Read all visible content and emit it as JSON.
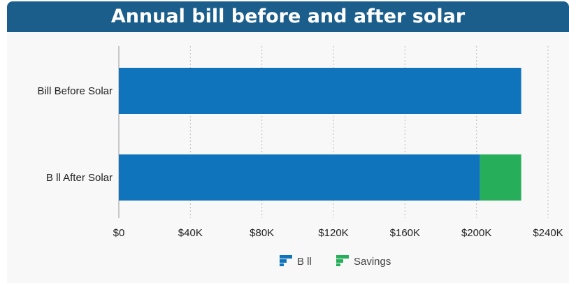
{
  "chart_data": {
    "type": "bar",
    "orientation": "horizontal",
    "stacked": true,
    "title": "Annual bill before and after solar",
    "categories": [
      "Bill Before Solar",
      "B ll After Solar"
    ],
    "series": [
      {
        "name": "B ll",
        "color": "#1074bc",
        "values": [
          225000,
          202000
        ]
      },
      {
        "name": "Savings",
        "color": "#27ae5a",
        "values": [
          0,
          23000
        ]
      }
    ],
    "xlim": [
      0,
      240000
    ],
    "x_ticks": [
      0,
      40000,
      80000,
      120000,
      160000,
      200000,
      240000
    ],
    "x_tick_labels": [
      "$0",
      "$40K",
      "$80K",
      "$120K",
      "$160K",
      "$200K",
      "$240K"
    ],
    "xlabel": "",
    "ylabel": "",
    "grid": "vertical dotted",
    "legend_position": "bottom"
  }
}
